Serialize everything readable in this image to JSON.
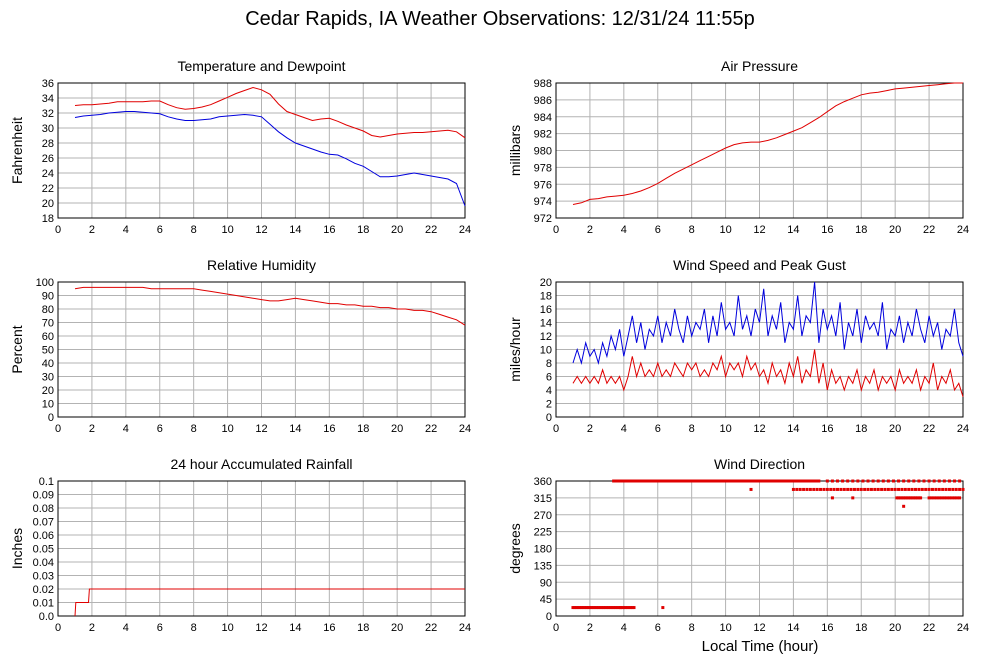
{
  "page": {
    "title": "Cedar Rapids, IA Weather Observations: 12/31/24 11:55p",
    "footer_xlabel": "Local Time (hour)"
  },
  "colors": {
    "red": "#e00000",
    "blue": "#0000dd",
    "grid": "#b3b3b3",
    "frame": "#000000"
  },
  "chart_data": [
    {
      "id": "temp",
      "type": "line",
      "title": "Temperature and Dewpoint",
      "ylabel": "Fahrenheit",
      "xlabel": "",
      "xlim": [
        0,
        24
      ],
      "ylim": [
        18,
        36
      ],
      "xticks": [
        0,
        2,
        4,
        6,
        8,
        10,
        12,
        14,
        16,
        18,
        20,
        22,
        24
      ],
      "yticks": [
        18,
        20,
        22,
        24,
        26,
        28,
        30,
        32,
        34,
        36
      ],
      "grid": true,
      "series": [
        {
          "color": "#e00000",
          "x": [
            1,
            1.5,
            2,
            2.5,
            3,
            3.5,
            4,
            4.5,
            5,
            5.5,
            6,
            6.5,
            7,
            7.5,
            8,
            8.5,
            9,
            9.5,
            10,
            10.5,
            11,
            11.5,
            12,
            12.5,
            13,
            13.5,
            14,
            14.5,
            15,
            15.5,
            16,
            16.5,
            17,
            17.5,
            18,
            18.5,
            19,
            19.5,
            20,
            20.5,
            21,
            21.5,
            22,
            22.5,
            23,
            23.5,
            24
          ],
          "y": [
            33,
            33.1,
            33.1,
            33.2,
            33.3,
            33.5,
            33.5,
            33.5,
            33.5,
            33.6,
            33.6,
            33.1,
            32.7,
            32.5,
            32.6,
            32.8,
            33.1,
            33.6,
            34.1,
            34.6,
            35,
            35.4,
            35.1,
            34.5,
            33.2,
            32.2,
            31.8,
            31.4,
            31,
            31.2,
            31.3,
            30.9,
            30.4,
            30,
            29.6,
            29,
            28.8,
            29,
            29.2,
            29.3,
            29.4,
            29.4,
            29.5,
            29.6,
            29.7,
            29.5,
            28.7
          ]
        },
        {
          "color": "#0000dd",
          "x": [
            1,
            1.5,
            2,
            2.5,
            3,
            3.5,
            4,
            4.5,
            5,
            5.5,
            6,
            6.5,
            7,
            7.5,
            8,
            8.5,
            9,
            9.5,
            10,
            10.5,
            11,
            11.5,
            12,
            12.5,
            13,
            13.5,
            14,
            14.5,
            15,
            15.5,
            16,
            16.5,
            17,
            17.5,
            18,
            18.5,
            19,
            19.5,
            20,
            20.5,
            21,
            21.5,
            22,
            22.5,
            23,
            23.5,
            24
          ],
          "y": [
            31.4,
            31.6,
            31.7,
            31.8,
            32,
            32.1,
            32.2,
            32.2,
            32.1,
            32,
            31.9,
            31.5,
            31.2,
            31,
            31,
            31.1,
            31.2,
            31.5,
            31.6,
            31.7,
            31.8,
            31.7,
            31.5,
            30.5,
            29.5,
            28.7,
            28,
            27.6,
            27.2,
            26.8,
            26.5,
            26.4,
            25.9,
            25.3,
            24.9,
            24.2,
            23.5,
            23.5,
            23.6,
            23.8,
            24,
            23.8,
            23.6,
            23.4,
            23.2,
            22.6,
            19.6
          ]
        }
      ]
    },
    {
      "id": "pressure",
      "type": "line",
      "title": "Air Pressure",
      "ylabel": "millibars",
      "xlabel": "",
      "xlim": [
        0,
        24
      ],
      "ylim": [
        972,
        988
      ],
      "xticks": [
        0,
        2,
        4,
        6,
        8,
        10,
        12,
        14,
        16,
        18,
        20,
        22,
        24
      ],
      "yticks": [
        972,
        974,
        976,
        978,
        980,
        982,
        984,
        986,
        988
      ],
      "grid": true,
      "series": [
        {
          "color": "#e00000",
          "x": [
            1,
            1.5,
            2,
            2.5,
            3,
            3.5,
            4,
            4.5,
            5,
            5.5,
            6,
            6.5,
            7,
            7.5,
            8,
            8.5,
            9,
            9.5,
            10,
            10.5,
            11,
            11.5,
            12,
            12.5,
            13,
            13.5,
            14,
            14.5,
            15,
            15.5,
            16,
            16.5,
            17,
            17.5,
            18,
            18.5,
            19,
            19.5,
            20,
            20.5,
            21,
            21.5,
            22,
            22.5,
            23,
            23.5,
            24
          ],
          "y": [
            973.6,
            973.8,
            974.2,
            974.3,
            974.5,
            974.6,
            974.7,
            974.9,
            975.2,
            975.6,
            976.1,
            976.7,
            977.3,
            977.8,
            978.3,
            978.8,
            979.3,
            979.8,
            980.3,
            980.7,
            980.9,
            981,
            981,
            981.2,
            981.5,
            981.9,
            982.3,
            982.7,
            983.3,
            983.9,
            984.6,
            985.3,
            985.8,
            986.2,
            986.6,
            986.8,
            986.9,
            987.1,
            987.3,
            987.4,
            987.5,
            987.6,
            987.7,
            987.8,
            987.9,
            988,
            988
          ]
        }
      ]
    },
    {
      "id": "humidity",
      "type": "line",
      "title": "Relative Humidity",
      "ylabel": "Percent",
      "xlabel": "",
      "xlim": [
        0,
        24
      ],
      "ylim": [
        0,
        100
      ],
      "xticks": [
        0,
        2,
        4,
        6,
        8,
        10,
        12,
        14,
        16,
        18,
        20,
        22,
        24
      ],
      "yticks": [
        0,
        10,
        20,
        30,
        40,
        50,
        60,
        70,
        80,
        90,
        100
      ],
      "grid": true,
      "series": [
        {
          "color": "#e00000",
          "x": [
            1,
            1.5,
            2,
            2.5,
            3,
            3.5,
            4,
            4.5,
            5,
            5.5,
            6,
            6.5,
            7,
            7.5,
            8,
            8.5,
            9,
            9.5,
            10,
            10.5,
            11,
            11.5,
            12,
            12.5,
            13,
            13.5,
            14,
            14.5,
            15,
            15.5,
            16,
            16.5,
            17,
            17.5,
            18,
            18.5,
            19,
            19.5,
            20,
            20.5,
            21,
            21.5,
            22,
            22.5,
            23,
            23.5,
            24
          ],
          "y": [
            95,
            96,
            96,
            96,
            96,
            96,
            96,
            96,
            96,
            95,
            95,
            95,
            95,
            95,
            95,
            94,
            93,
            92,
            91,
            90,
            89,
            88,
            87,
            86,
            86,
            87,
            88,
            87,
            86,
            85,
            84,
            84,
            83,
            83,
            82,
            82,
            81,
            81,
            80,
            80,
            79,
            79,
            78,
            76,
            74,
            72,
            68
          ]
        }
      ]
    },
    {
      "id": "wind",
      "type": "line",
      "title": "Wind Speed and Peak Gust",
      "ylabel": "miles/hour",
      "xlabel": "",
      "xlim": [
        0,
        24
      ],
      "ylim": [
        0,
        20
      ],
      "xticks": [
        0,
        2,
        4,
        6,
        8,
        10,
        12,
        14,
        16,
        18,
        20,
        22,
        24
      ],
      "yticks": [
        0,
        2,
        4,
        6,
        8,
        10,
        12,
        14,
        16,
        18,
        20
      ],
      "grid": true,
      "series": [
        {
          "color": "#0000dd",
          "x": [
            1,
            1.25,
            1.5,
            1.75,
            2,
            2.25,
            2.5,
            2.75,
            3,
            3.25,
            3.5,
            3.75,
            4,
            4.25,
            4.5,
            4.75,
            5,
            5.25,
            5.5,
            5.75,
            6,
            6.25,
            6.5,
            6.75,
            7,
            7.25,
            7.5,
            7.75,
            8,
            8.25,
            8.5,
            8.75,
            9,
            9.25,
            9.5,
            9.75,
            10,
            10.25,
            10.5,
            10.75,
            11,
            11.25,
            11.5,
            11.75,
            12,
            12.25,
            12.5,
            12.75,
            13,
            13.25,
            13.5,
            13.75,
            14,
            14.25,
            14.5,
            14.75,
            15,
            15.25,
            15.5,
            15.75,
            16,
            16.25,
            16.5,
            16.75,
            17,
            17.25,
            17.5,
            17.75,
            18,
            18.25,
            18.5,
            18.75,
            19,
            19.25,
            19.5,
            19.75,
            20,
            20.25,
            20.5,
            20.75,
            21,
            21.25,
            21.5,
            21.75,
            22,
            22.25,
            22.5,
            22.75,
            23,
            23.25,
            23.5,
            23.75,
            24
          ],
          "y": [
            8,
            10,
            8,
            11,
            9,
            10,
            8,
            11,
            9,
            12,
            10,
            13,
            9,
            12,
            15,
            11,
            14,
            10,
            13,
            12,
            15,
            11,
            14,
            12,
            16,
            13,
            11,
            15,
            12,
            14,
            13,
            16,
            11,
            15,
            12,
            17,
            13,
            14,
            12,
            18,
            13,
            15,
            12,
            16,
            14,
            19,
            12,
            15,
            13,
            17,
            11,
            14,
            13,
            18,
            12,
            15,
            14,
            20,
            11,
            16,
            13,
            15,
            12,
            17,
            10,
            14,
            12,
            16,
            11,
            15,
            13,
            14,
            12,
            17,
            10,
            13,
            12,
            15,
            11,
            14,
            12,
            16,
            13,
            11,
            15,
            12,
            14,
            10,
            13,
            12,
            16,
            11,
            9
          ]
        },
        {
          "color": "#e00000",
          "x": [
            1,
            1.25,
            1.5,
            1.75,
            2,
            2.25,
            2.5,
            2.75,
            3,
            3.25,
            3.5,
            3.75,
            4,
            4.25,
            4.5,
            4.75,
            5,
            5.25,
            5.5,
            5.75,
            6,
            6.25,
            6.5,
            6.75,
            7,
            7.25,
            7.5,
            7.75,
            8,
            8.25,
            8.5,
            8.75,
            9,
            9.25,
            9.5,
            9.75,
            10,
            10.25,
            10.5,
            10.75,
            11,
            11.25,
            11.5,
            11.75,
            12,
            12.25,
            12.5,
            12.75,
            13,
            13.25,
            13.5,
            13.75,
            14,
            14.25,
            14.5,
            14.75,
            15,
            15.25,
            15.5,
            15.75,
            16,
            16.25,
            16.5,
            16.75,
            17,
            17.25,
            17.5,
            17.75,
            18,
            18.25,
            18.5,
            18.75,
            19,
            19.25,
            19.5,
            19.75,
            20,
            20.25,
            20.5,
            20.75,
            21,
            21.25,
            21.5,
            21.75,
            22,
            22.25,
            22.5,
            22.75,
            23,
            23.25,
            23.5,
            23.75,
            24
          ],
          "y": [
            5,
            6,
            5,
            6,
            5,
            6,
            5,
            7,
            5,
            6,
            5,
            6,
            4,
            6,
            9,
            6,
            8,
            6,
            7,
            6,
            8,
            6,
            7,
            6,
            8,
            7,
            6,
            8,
            7,
            8,
            6,
            7,
            6,
            8,
            7,
            9,
            6,
            8,
            7,
            8,
            6,
            9,
            7,
            8,
            6,
            7,
            5,
            8,
            6,
            7,
            5,
            8,
            6,
            9,
            5,
            7,
            6,
            10,
            5,
            8,
            4,
            7,
            5,
            6,
            4,
            6,
            5,
            7,
            4,
            6,
            5,
            7,
            4,
            6,
            5,
            6,
            4,
            7,
            5,
            6,
            5,
            7,
            4,
            6,
            5,
            8,
            4,
            6,
            5,
            7,
            4,
            5,
            3
          ]
        }
      ]
    },
    {
      "id": "rain",
      "type": "line",
      "title": "24 hour Accumulated Rainfall",
      "ylabel": "Inches",
      "xlabel": "",
      "xlim": [
        0,
        24
      ],
      "ylim": [
        0,
        0.1
      ],
      "xticks": [
        0,
        2,
        4,
        6,
        8,
        10,
        12,
        14,
        16,
        18,
        20,
        22,
        24
      ],
      "yticks": [
        0.0,
        0.01,
        0.02,
        0.03,
        0.04,
        0.05,
        0.06,
        0.07,
        0.08,
        0.09,
        0.1
      ],
      "ytick_labels": [
        "0.0",
        "0.01",
        "0.02",
        "0.03",
        "0.04",
        "0.05",
        "0.06",
        "0.07",
        "0.08",
        "0.09",
        "0.1"
      ],
      "grid": true,
      "series": [
        {
          "color": "#e00000",
          "x": [
            1,
            1.05,
            1.8,
            1.85,
            24
          ],
          "y": [
            0,
            0.01,
            0.01,
            0.02,
            0.02
          ]
        }
      ]
    },
    {
      "id": "direction",
      "type": "scatter",
      "title": "Wind Direction",
      "ylabel": "degrees",
      "xlabel": "Local Time (hour)",
      "xlim": [
        0,
        24
      ],
      "ylim": [
        0,
        360
      ],
      "xticks": [
        0,
        2,
        4,
        6,
        8,
        10,
        12,
        14,
        16,
        18,
        20,
        22,
        24
      ],
      "yticks": [
        0,
        45,
        90,
        135,
        180,
        225,
        270,
        315,
        360
      ],
      "grid": true,
      "series": [
        {
          "color": "#e00000",
          "segments": [
            {
              "x0": 1.0,
              "x1": 4.6,
              "y": 22.5,
              "step": 0.1
            },
            {
              "x0": 3.4,
              "x1": 15.5,
              "y": 360,
              "step": 0.1
            },
            {
              "x0": 16.0,
              "x1": 24.0,
              "y": 360,
              "step": 0.3
            },
            {
              "x0": 14.0,
              "x1": 24.0,
              "y": 337.5,
              "step": 0.2
            },
            {
              "x0": 20.1,
              "x1": 21.5,
              "y": 315,
              "step": 0.1
            },
            {
              "x0": 22.0,
              "x1": 23.8,
              "y": 315,
              "step": 0.15
            }
          ],
          "points": [
            [
              6.3,
              22.5
            ],
            [
              11.5,
              337.5
            ],
            [
              16.3,
              315
            ],
            [
              17.5,
              315
            ],
            [
              20.5,
              292.5
            ],
            [
              3.8,
              22.5
            ]
          ]
        }
      ]
    }
  ]
}
